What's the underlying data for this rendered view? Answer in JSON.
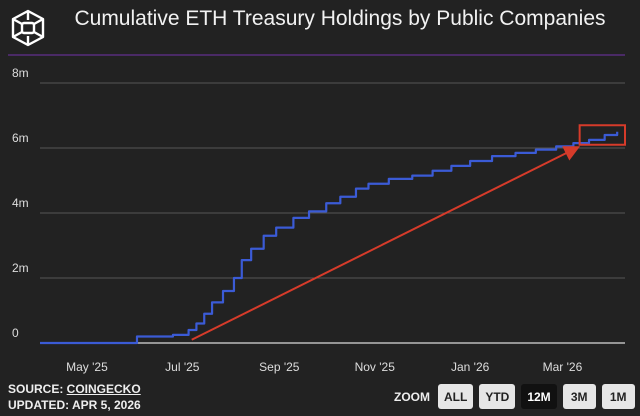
{
  "title": "Cumulative ETH Treasury Holdings by Public Companies",
  "footer": {
    "source_label": "SOURCE: ",
    "source_link": "COINGECKO",
    "updated": "UPDATED: APR 5, 2026"
  },
  "zoom": {
    "label": "ZOOM",
    "buttons": [
      "ALL",
      "YTD",
      "12M",
      "3M",
      "1M"
    ],
    "active": "12M"
  },
  "colors": {
    "line": "#3b5bd6",
    "annotation": "#d63b2a",
    "background": "#222222",
    "rule": "#4a2a66"
  },
  "chart_data": {
    "type": "line",
    "title": "Cumulative ETH Treasury Holdings by Public Companies",
    "step": true,
    "ylim": [
      0,
      8000000
    ],
    "yticks": [
      {
        "v": 0,
        "label": "0"
      },
      {
        "v": 2000000,
        "label": "2m"
      },
      {
        "v": 4000000,
        "label": "4m"
      },
      {
        "v": 6000000,
        "label": "6m"
      },
      {
        "v": 8000000,
        "label": "8m"
      }
    ],
    "xlim": [
      "2025-04-01",
      "2026-04-10"
    ],
    "xticks": [
      {
        "d": "2025-05-01",
        "label": "May '25"
      },
      {
        "d": "2025-07-01",
        "label": "Jul '25"
      },
      {
        "d": "2025-09-01",
        "label": "Sep '25"
      },
      {
        "d": "2025-11-01",
        "label": "Nov '25"
      },
      {
        "d": "2026-01-01",
        "label": "Jan '26"
      },
      {
        "d": "2026-03-01",
        "label": "Mar '26"
      }
    ],
    "grid": true,
    "series": [
      {
        "x": [
          "2025-04-01",
          "2025-06-02",
          "2025-06-25",
          "2025-07-05",
          "2025-07-10",
          "2025-07-15",
          "2025-07-20",
          "2025-07-27",
          "2025-08-03",
          "2025-08-08",
          "2025-08-14",
          "2025-08-22",
          "2025-08-30",
          "2025-09-10",
          "2025-09-20",
          "2025-10-01",
          "2025-10-10",
          "2025-10-20",
          "2025-10-28",
          "2025-11-10",
          "2025-11-25",
          "2025-12-08",
          "2025-12-20",
          "2026-01-01",
          "2026-01-15",
          "2026-01-30",
          "2026-02-12",
          "2026-02-25",
          "2026-03-08",
          "2026-03-18",
          "2026-03-28",
          "2026-04-05"
        ],
        "y": [
          0,
          200000,
          250000,
          400000,
          600000,
          900000,
          1250000,
          1600000,
          2000000,
          2550000,
          2900000,
          3300000,
          3550000,
          3850000,
          4050000,
          4300000,
          4500000,
          4750000,
          4900000,
          5050000,
          5150000,
          5300000,
          5450000,
          5600000,
          5750000,
          5850000,
          5950000,
          6050000,
          6150000,
          6250000,
          6400000,
          6500000
        ]
      }
    ],
    "annotations": [
      {
        "type": "arrow",
        "from": [
          "2025-07-07",
          100000
        ],
        "to": [
          "2026-03-10",
          6000000
        ]
      },
      {
        "type": "box",
        "x": [
          "2026-03-12",
          "2026-04-10"
        ],
        "y": [
          6100000,
          6700000
        ]
      }
    ]
  }
}
